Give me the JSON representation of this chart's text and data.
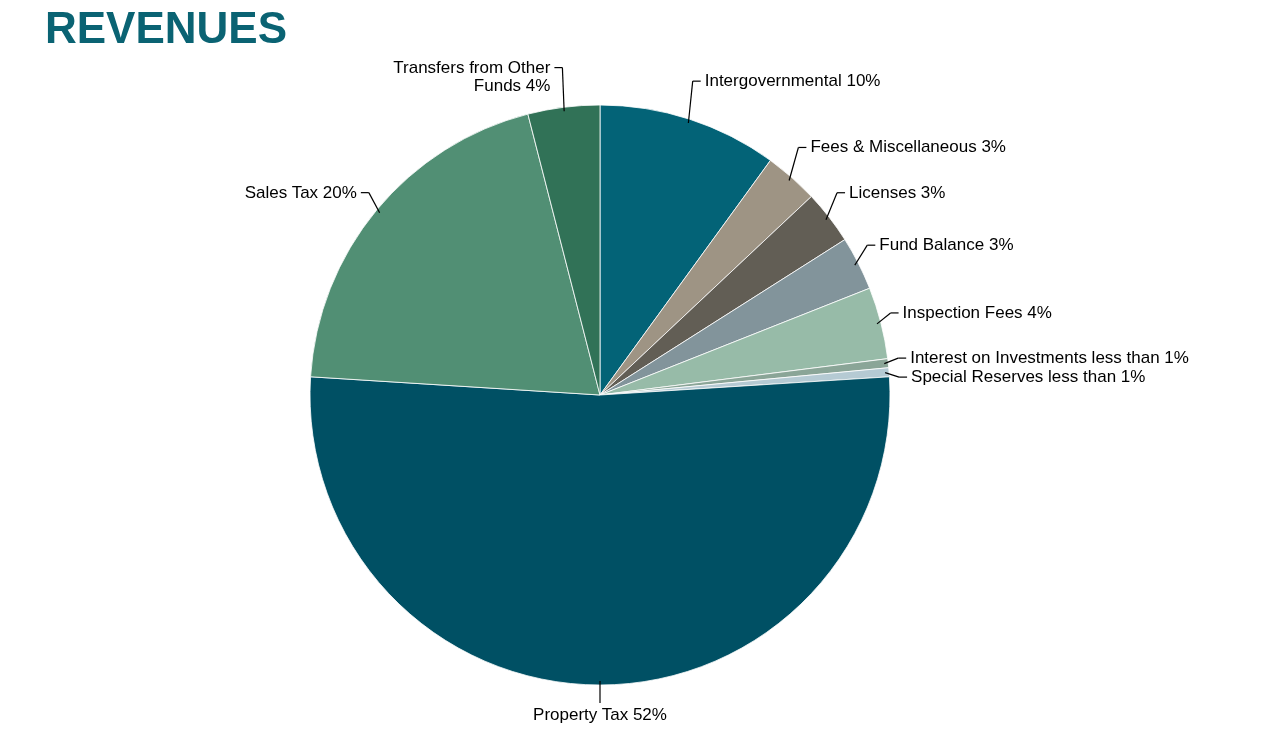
{
  "chart_data": {
    "type": "pie",
    "title": "REVENUES",
    "categories": [
      "Intergovernmental",
      "Fees & Miscellaneous",
      "Licenses",
      "Fund Balance",
      "Inspection Fees",
      "Interest on Investments",
      "Special Reserves",
      "Property Tax",
      "Sales Tax",
      "Transfers from Other Funds"
    ],
    "values": [
      10,
      3,
      3,
      3,
      4,
      0.5,
      0.5,
      52,
      20,
      4
    ],
    "value_labels": [
      "10%",
      "3%",
      "3%",
      "3%",
      "4%",
      "less than 1%",
      "less than 1%",
      "52%",
      "20%",
      "4%"
    ],
    "colors": [
      "#036377",
      "#9e9484",
      "#625e55",
      "#82949b",
      "#97bba8",
      "#8aa597",
      "#b5cad3",
      "#005064",
      "#518f74",
      "#317257"
    ]
  }
}
